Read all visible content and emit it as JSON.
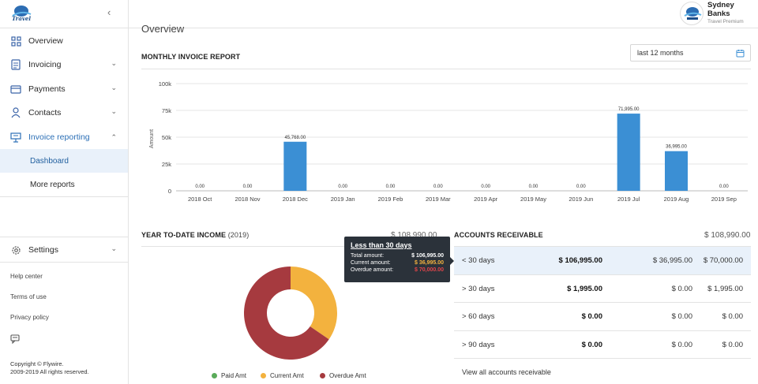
{
  "app": {
    "logo_text": "Travel"
  },
  "sidebar": {
    "items": [
      {
        "label": "Overview"
      },
      {
        "label": "Invoicing"
      },
      {
        "label": "Payments"
      },
      {
        "label": "Contacts"
      },
      {
        "label": "Invoice reporting"
      }
    ],
    "subitems": [
      {
        "label": "Dashboard"
      },
      {
        "label": "More reports"
      }
    ],
    "settings": "Settings",
    "footer_links": [
      "Help center",
      "Terms of use",
      "Privacy policy"
    ],
    "copyright_line1": "Copyright © Flywire.",
    "copyright_line2": "2009-2019 All rights reserved."
  },
  "header": {
    "page_title": "Overview",
    "user_first": "Sydney",
    "user_last": "Banks",
    "user_plan": "Travel Premium"
  },
  "monthly": {
    "title": "MONTHLY INVOICE REPORT",
    "range": "last 12 months"
  },
  "chart_data": {
    "type": "bar",
    "title": "MONTHLY INVOICE REPORT",
    "ylabel": "Amount",
    "xlabel": "",
    "ylim": [
      0,
      100000
    ],
    "yticks": [
      "0",
      "25k",
      "50k",
      "75k",
      "100k"
    ],
    "grid": true,
    "categories": [
      "2018 Oct",
      "2018 Nov",
      "2018 Dec",
      "2019 Jan",
      "2019 Feb",
      "2019 Mar",
      "2019 Apr",
      "2019 May",
      "2019 Jun",
      "2019 Jul",
      "2019 Aug",
      "2019 Sep"
    ],
    "values": [
      0,
      0,
      45768,
      0,
      0,
      0,
      0,
      0,
      0,
      71995,
      36995,
      0
    ],
    "value_labels": [
      "0.00",
      "0.00",
      "45,768.00",
      "0.00",
      "0.00",
      "0.00",
      "0.00",
      "0.00",
      "0.00",
      "71,995.00",
      "36,995.00",
      "0.00"
    ],
    "color": "#3b8fd4"
  },
  "ytd": {
    "title": "YEAR TO-DATE INCOME",
    "year": "(2019)",
    "total": "$ 108,990.00",
    "donut": [
      {
        "name": "Paid Amt",
        "value": 0,
        "color": "#5aab5a"
      },
      {
        "name": "Current Amt",
        "value": 36995,
        "color": "#f3b23e"
      },
      {
        "name": "Overdue Amt",
        "value": 70000,
        "color": "#a63a3f"
      }
    ],
    "tooltip": {
      "title": "Less than 30 days",
      "rows": [
        {
          "label": "Total amount:",
          "value": "$ 106,995.00",
          "color": "#ffffff"
        },
        {
          "label": "Current amount:",
          "value": "$ 36,995.00",
          "color": "#f3b23e"
        },
        {
          "label": "Overdue amount:",
          "value": "$ 70,000.00",
          "color": "#e2454a"
        }
      ]
    }
  },
  "ar": {
    "title": "ACCOUNTS RECEIVABLE",
    "total": "$ 108,990.00",
    "rows": [
      {
        "period": "< 30 days",
        "total": "$ 106,995.00",
        "current": "$ 36,995.00",
        "overdue": "$ 70,000.00"
      },
      {
        "period": "> 30 days",
        "total": "$ 1,995.00",
        "current": "$ 0.00",
        "overdue": "$ 1,995.00"
      },
      {
        "period": "> 60 days",
        "total": "$ 0.00",
        "current": "$ 0.00",
        "overdue": "$ 0.00"
      },
      {
        "period": "> 90 days",
        "total": "$ 0.00",
        "current": "$ 0.00",
        "overdue": "$ 0.00"
      }
    ],
    "link": "View all accounts receivable"
  },
  "colors": {
    "accent": "#2b6fb6",
    "selected_bg": "#e9f1fa"
  }
}
